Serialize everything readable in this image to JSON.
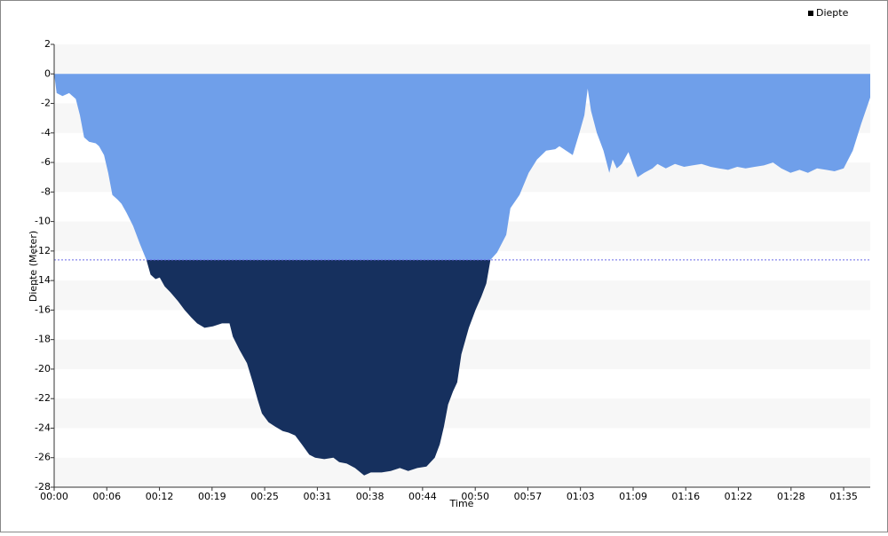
{
  "chart_data": {
    "type": "area",
    "y_label": "Diepte (Meter)",
    "x_label": "Time",
    "legend": "top-right",
    "grid": "bands",
    "threshold": -12.6,
    "threshold_color": "#16305e",
    "x": [
      0,
      0.3,
      1.0,
      1.8,
      2.6,
      3.1,
      3.6,
      4.2,
      5.0,
      5.4,
      6.0,
      6.5,
      7.0,
      7.6,
      8.1,
      8.7,
      9.5,
      10.3,
      11.1,
      11.6,
      12.2,
      12.7,
      13.3,
      14.0,
      14.9,
      15.7,
      16.5,
      17.2,
      18.1,
      19.1,
      20.2,
      21.1,
      21.5,
      22.3,
      23.2,
      23.9,
      24.5,
      25.0,
      25.8,
      26.6,
      27.5,
      28.2,
      29.0,
      29.8,
      30.7,
      31.4,
      32.5,
      33.6,
      34.3,
      35.2,
      36.2,
      37.3,
      38.1,
      39.4,
      40.5,
      41.6,
      42.6,
      43.7,
      44.8,
      45.8,
      46.4,
      46.9,
      47.4,
      48.0,
      48.5,
      49.0,
      49.9,
      50.7,
      51.4,
      52.0,
      52.5,
      53.3,
      54.4,
      54.9,
      56.0,
      57.1,
      58.1,
      59.2,
      60.3,
      60.8,
      61.6,
      62.4,
      63.2,
      63.8,
      64.2,
      64.6,
      65.3,
      66.1,
      66.8,
      67.2,
      67.7,
      68.3,
      69.1,
      69.6,
      70.2,
      71.0,
      72.0,
      72.6,
      73.6,
      74.7,
      75.8,
      76.8,
      77.9,
      79.0,
      80.0,
      81.1,
      82.2,
      83.2,
      84.3,
      85.4,
      86.5,
      87.5,
      88.6,
      89.7,
      90.7,
      91.8,
      92.9,
      93.9,
      95.0,
      96.1,
      97.1,
      98.2
    ],
    "series": [
      {
        "name": "Diepte",
        "color": "#6f9fea",
        "values": [
          0,
          -1.3,
          -1.5,
          -1.3,
          -1.7,
          -2.8,
          -4.3,
          -4.6,
          -4.7,
          -4.9,
          -5.5,
          -6.7,
          -8.2,
          -8.5,
          -8.8,
          -9.4,
          -10.3,
          -11.5,
          -12.6,
          -13.6,
          -13.9,
          -13.8,
          -14.4,
          -14.8,
          -15.4,
          -16.0,
          -16.5,
          -16.9,
          -17.2,
          -17.1,
          -16.9,
          -16.9,
          -17.8,
          -18.7,
          -19.6,
          -20.9,
          -22.1,
          -23.0,
          -23.6,
          -23.9,
          -24.2,
          -24.3,
          -24.5,
          -25.1,
          -25.8,
          -26.0,
          -26.1,
          -26.0,
          -26.3,
          -26.4,
          -26.7,
          -27.2,
          -27.0,
          -27.0,
          -26.9,
          -26.7,
          -26.9,
          -26.7,
          -26.6,
          -26.0,
          -25.1,
          -23.9,
          -22.4,
          -21.5,
          -20.9,
          -19.0,
          -17.2,
          -16.0,
          -15.1,
          -14.2,
          -12.6,
          -12.1,
          -10.9,
          -9.1,
          -8.2,
          -6.7,
          -5.8,
          -5.2,
          -5.1,
          -4.9,
          -5.2,
          -5.5,
          -4.0,
          -2.8,
          -1.0,
          -2.5,
          -4.0,
          -5.2,
          -6.7,
          -5.8,
          -6.4,
          -6.1,
          -5.3,
          -6.1,
          -7.0,
          -6.7,
          -6.4,
          -6.1,
          -6.4,
          -6.1,
          -6.3,
          -6.2,
          -6.1,
          -6.3,
          -6.4,
          -6.5,
          -6.3,
          -6.4,
          -6.3,
          -6.2,
          -6.0,
          -6.4,
          -6.7,
          -6.5,
          -6.7,
          -6.4,
          -6.5,
          -6.6,
          -6.4,
          -5.2,
          -3.4,
          -1.6
        ]
      }
    ],
    "xlim": [
      0,
      98.2
    ],
    "xticks": [
      {
        "value": 0,
        "label": "00:00"
      },
      {
        "value": 6.33,
        "label": "00:06"
      },
      {
        "value": 12.67,
        "label": "00:12"
      },
      {
        "value": 19,
        "label": "00:19"
      },
      {
        "value": 25.33,
        "label": "00:25"
      },
      {
        "value": 31.67,
        "label": "00:31"
      },
      {
        "value": 38,
        "label": "00:38"
      },
      {
        "value": 44.33,
        "label": "00:44"
      },
      {
        "value": 50.67,
        "label": "00:50"
      },
      {
        "value": 57,
        "label": "00:57"
      },
      {
        "value": 63.33,
        "label": "01:03"
      },
      {
        "value": 69.67,
        "label": "01:09"
      },
      {
        "value": 76,
        "label": "01:16"
      },
      {
        "value": 82.33,
        "label": "01:22"
      },
      {
        "value": 88.67,
        "label": "01:28"
      },
      {
        "value": 95,
        "label": "01:35"
      }
    ],
    "ylim": [
      -28,
      2
    ],
    "yticks": [
      -28,
      -26,
      -24,
      -22,
      -20,
      -18,
      -16,
      -14,
      -12,
      -10,
      -8,
      -6,
      -4,
      -2,
      0,
      2
    ]
  }
}
